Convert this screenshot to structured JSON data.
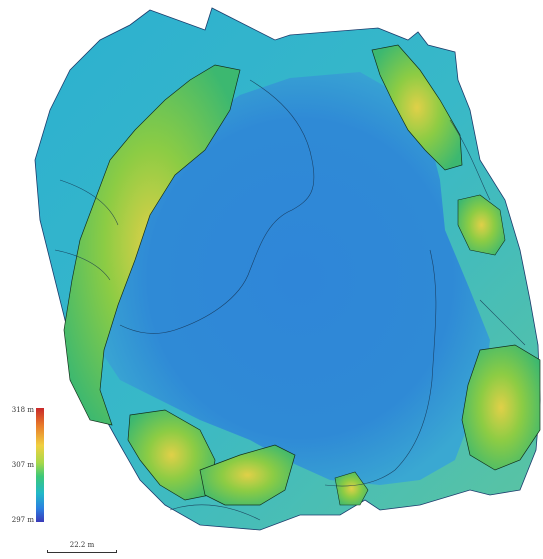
{
  "legend": {
    "max_label": "318 m",
    "mid_label": "307 m",
    "min_label": "297 m",
    "colors": [
      "#c8282a",
      "#e87a2a",
      "#f0d040",
      "#a8d84a",
      "#3cc878",
      "#22b8c8",
      "#2a80e0",
      "#3a3ab8"
    ]
  },
  "scale_bar": {
    "label": "22.2 m"
  },
  "map": {
    "water_color": "#2e86d6",
    "rim_color": "#46b8c8",
    "rock_color": "#6cc04a",
    "peak_color": "#d8c840"
  }
}
